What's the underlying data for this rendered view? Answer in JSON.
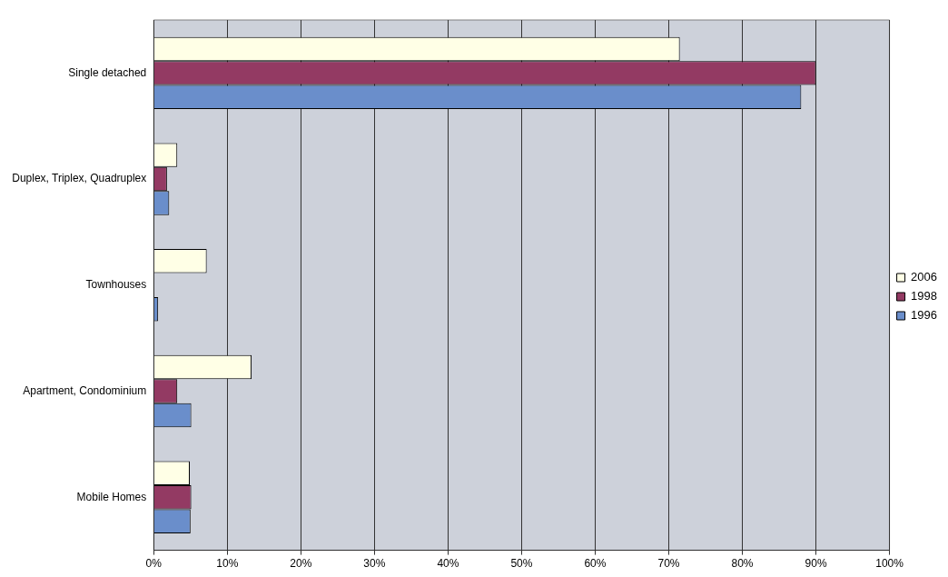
{
  "chart_data": {
    "type": "bar",
    "orientation": "horizontal",
    "categories": [
      "Single detached",
      "Duplex, Triplex, Quadruplex",
      "Townhouses",
      "Apartment, Condominium",
      "Mobile Homes"
    ],
    "series": [
      {
        "name": "2006",
        "color": "#ffffe6",
        "values": [
          71.5,
          3.2,
          7.2,
          13.3,
          4.9
        ]
      },
      {
        "name": "1998",
        "color": "#933a63",
        "values": [
          90,
          1.8,
          0,
          3.2,
          5.1
        ]
      },
      {
        "name": "1996",
        "color": "#6a8ecb",
        "values": [
          88,
          2.1,
          0.6,
          5.1,
          5
        ]
      }
    ],
    "xlim": [
      0,
      100
    ],
    "xticks": [
      {
        "value": 0,
        "label": "0%"
      },
      {
        "value": 10,
        "label": "10%"
      },
      {
        "value": 20,
        "label": "20%"
      },
      {
        "value": 30,
        "label": "30%"
      },
      {
        "value": 40,
        "label": "40%"
      },
      {
        "value": 50,
        "label": "50%"
      },
      {
        "value": 60,
        "label": "60%"
      },
      {
        "value": 70,
        "label": "70%"
      },
      {
        "value": 80,
        "label": "80%"
      },
      {
        "value": 90,
        "label": "90%"
      },
      {
        "value": 100,
        "label": "100%"
      }
    ],
    "grid": "x",
    "legend": "right"
  }
}
